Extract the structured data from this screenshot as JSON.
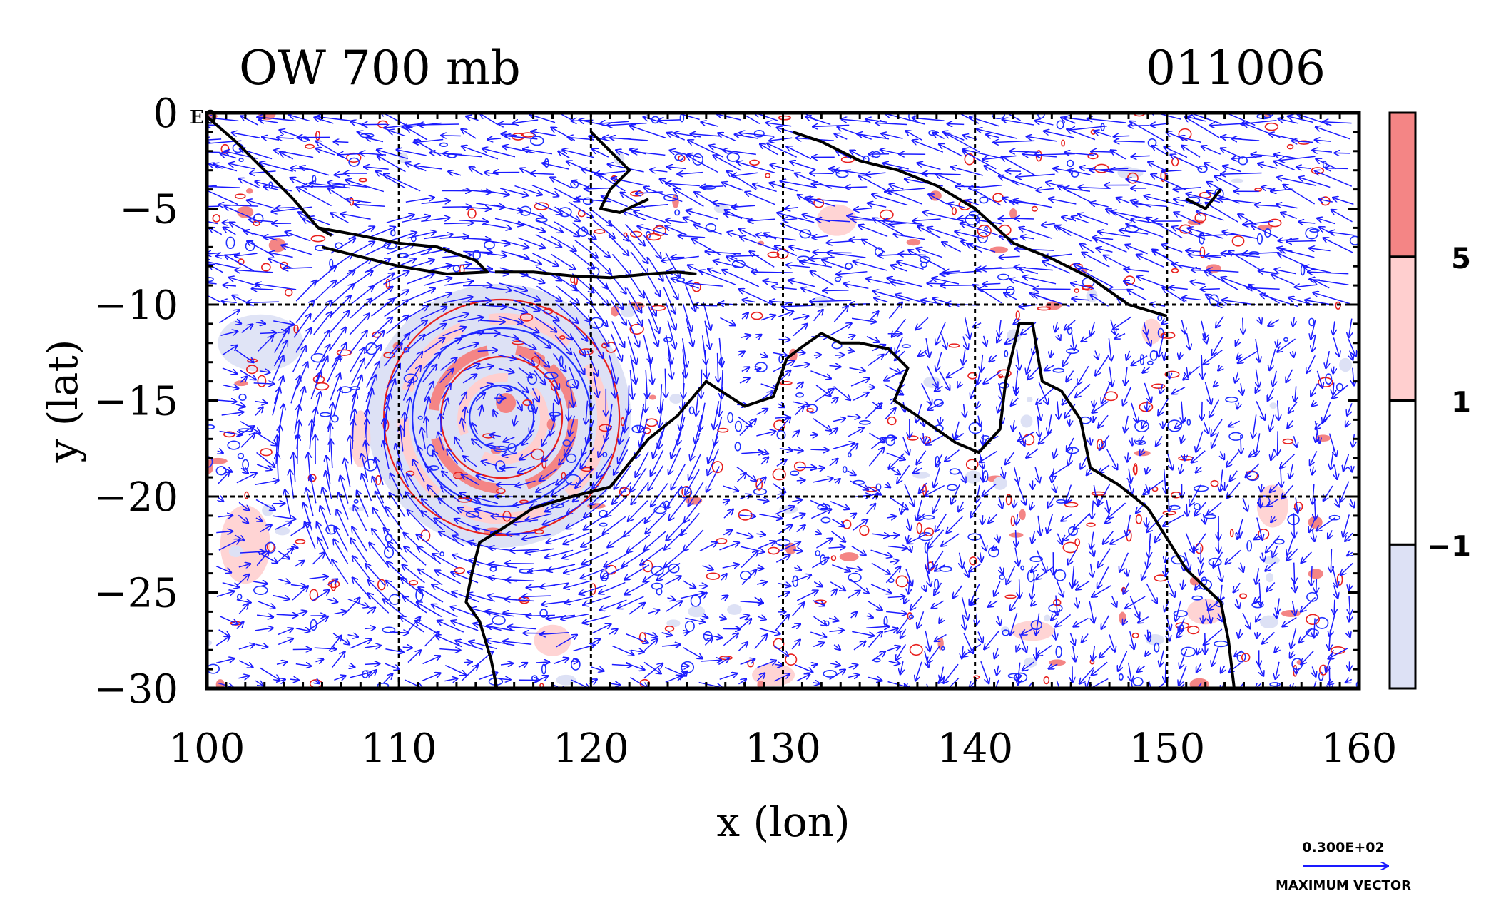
{
  "chart_data": {
    "type": "heatmap",
    "title": "OW 700 mb",
    "title_right": "011006",
    "xlabel": "x (lon)",
    "ylabel": "y (lat)",
    "xlim": [
      100,
      160
    ],
    "ylim": [
      -30,
      0
    ],
    "x_ticks": [
      100,
      110,
      120,
      130,
      140,
      150,
      160
    ],
    "y_ticks": [
      0,
      -5,
      -10,
      -15,
      -20,
      -25,
      -30
    ],
    "corner_label": "E0",
    "grid": true,
    "colorbar": {
      "levels": [
        -1,
        1,
        5
      ],
      "level_labels": [
        "−1",
        "1",
        "5"
      ],
      "colors": [
        "#dde1f5",
        "#ffffff",
        "#ffcfcf",
        "#f48585"
      ]
    },
    "vector_key": {
      "value": "0.300E+02",
      "label": "MAXIMUM VECTOR"
    },
    "colors": {
      "vectors": "#1a1aff",
      "contours_positive": "#e8201e",
      "contours_negative": "#2030ff",
      "coastline": "#000000"
    },
    "features": {
      "cyclone_center": [
        115.2,
        -15.8
      ]
    }
  }
}
